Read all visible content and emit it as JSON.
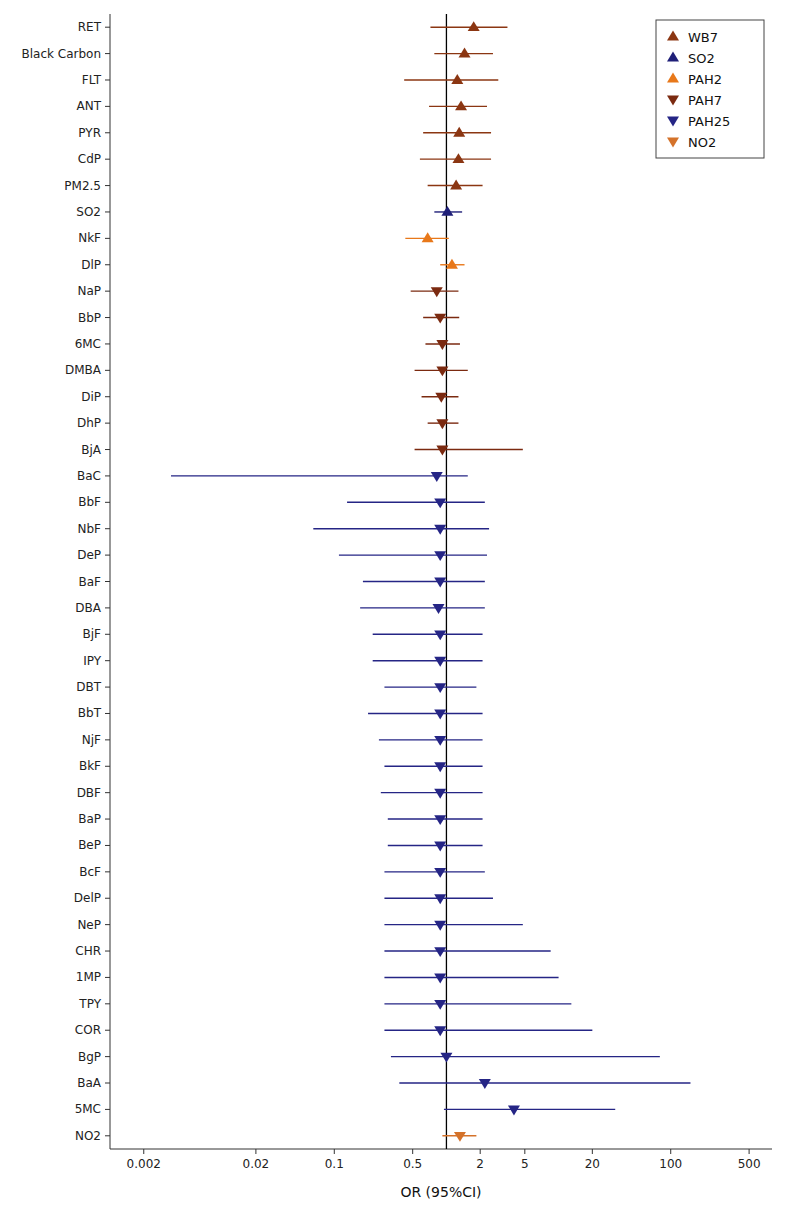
{
  "chart_data": {
    "type": "forest",
    "xlabel": "OR (95%CI)",
    "log": "x",
    "xlim": [
      0.001,
      800
    ],
    "xticks": [
      0.002,
      0.02,
      0.1,
      0.5,
      2,
      5,
      20,
      100,
      500
    ],
    "ref_line": 1.0,
    "grid": false,
    "legend": "upper right",
    "categories": [
      "RET",
      "Black Carbon",
      "FLT",
      "ANT",
      "PYR",
      "CdP",
      "PM2.5",
      "SO2",
      "NkF",
      "DlP",
      "NaP",
      "BbP",
      "6MC",
      "DMBA",
      "DiP",
      "DhP",
      "BjA",
      "BaC",
      "BbF",
      "NbF",
      "DeP",
      "BaF",
      "DBA",
      "BjF",
      "IPY",
      "DBT",
      "BbT",
      "NjF",
      "BkF",
      "DBF",
      "BaP",
      "BeP",
      "BcF",
      "DelP",
      "NeP",
      "CHR",
      "1MP",
      "TPY",
      "COR",
      "BgP",
      "BaA",
      "5MC",
      "NO2"
    ],
    "series": [
      {
        "name": "WB7",
        "color": "#8B3612",
        "marker": "triangle-up",
        "values": [
          1.75,
          1.45,
          1.25,
          1.35,
          1.3,
          1.28,
          1.22,
          null,
          null,
          null,
          null,
          null,
          null,
          null,
          null,
          null,
          null,
          null,
          null,
          null,
          null,
          null,
          null,
          null,
          null,
          null,
          null,
          null,
          null,
          null,
          null,
          null,
          null,
          null,
          null,
          null,
          null,
          null,
          null,
          null,
          null,
          null,
          null
        ],
        "ci_lo": [
          0.72,
          0.78,
          0.42,
          0.7,
          0.62,
          0.58,
          0.68,
          null,
          null,
          null,
          null,
          null,
          null,
          null,
          null,
          null,
          null,
          null,
          null,
          null,
          null,
          null,
          null,
          null,
          null,
          null,
          null,
          null,
          null,
          null,
          null,
          null,
          null,
          null,
          null,
          null,
          null,
          null,
          null,
          null,
          null,
          null,
          null
        ],
        "ci_hi": [
          3.5,
          2.6,
          2.9,
          2.3,
          2.5,
          2.5,
          2.1,
          null,
          null,
          null,
          null,
          null,
          null,
          null,
          null,
          null,
          null,
          null,
          null,
          null,
          null,
          null,
          null,
          null,
          null,
          null,
          null,
          null,
          null,
          null,
          null,
          null,
          null,
          null,
          null,
          null,
          null,
          null,
          null,
          null,
          null,
          null,
          null
        ]
      },
      {
        "name": "SO2",
        "color": "#1F1F78",
        "marker": "triangle-up",
        "values": [
          null,
          null,
          null,
          null,
          null,
          null,
          null,
          1.02,
          null,
          null,
          null,
          null,
          null,
          null,
          null,
          null,
          null,
          null,
          null,
          null,
          null,
          null,
          null,
          null,
          null,
          null,
          null,
          null,
          null,
          null,
          null,
          null,
          null,
          null,
          null,
          null,
          null,
          null,
          null,
          null,
          null,
          null,
          null
        ],
        "ci_lo": [
          null,
          null,
          null,
          null,
          null,
          null,
          null,
          0.78,
          null,
          null,
          null,
          null,
          null,
          null,
          null,
          null,
          null,
          null,
          null,
          null,
          null,
          null,
          null,
          null,
          null,
          null,
          null,
          null,
          null,
          null,
          null,
          null,
          null,
          null,
          null,
          null,
          null,
          null,
          null,
          null,
          null,
          null,
          null
        ],
        "ci_hi": [
          null,
          null,
          null,
          null,
          null,
          null,
          null,
          1.38,
          null,
          null,
          null,
          null,
          null,
          null,
          null,
          null,
          null,
          null,
          null,
          null,
          null,
          null,
          null,
          null,
          null,
          null,
          null,
          null,
          null,
          null,
          null,
          null,
          null,
          null,
          null,
          null,
          null,
          null,
          null,
          null,
          null,
          null,
          null
        ]
      },
      {
        "name": "PAH2",
        "color": "#E8781A",
        "marker": "triangle-up",
        "values": [
          null,
          null,
          null,
          null,
          null,
          null,
          null,
          null,
          0.68,
          1.12,
          null,
          null,
          null,
          null,
          null,
          null,
          null,
          null,
          null,
          null,
          null,
          null,
          null,
          null,
          null,
          null,
          null,
          null,
          null,
          null,
          null,
          null,
          null,
          null,
          null,
          null,
          null,
          null,
          null,
          null,
          null,
          null,
          null
        ],
        "ci_lo": [
          null,
          null,
          null,
          null,
          null,
          null,
          null,
          null,
          0.43,
          0.88,
          null,
          null,
          null,
          null,
          null,
          null,
          null,
          null,
          null,
          null,
          null,
          null,
          null,
          null,
          null,
          null,
          null,
          null,
          null,
          null,
          null,
          null,
          null,
          null,
          null,
          null,
          null,
          null,
          null,
          null,
          null,
          null,
          null
        ],
        "ci_hi": [
          null,
          null,
          null,
          null,
          null,
          null,
          null,
          null,
          1.05,
          1.45,
          null,
          null,
          null,
          null,
          null,
          null,
          null,
          null,
          null,
          null,
          null,
          null,
          null,
          null,
          null,
          null,
          null,
          null,
          null,
          null,
          null,
          null,
          null,
          null,
          null,
          null,
          null,
          null,
          null,
          null,
          null,
          null,
          null
        ]
      },
      {
        "name": "PAH7",
        "color": "#7B2A10",
        "marker": "triangle-down",
        "values": [
          null,
          null,
          null,
          null,
          null,
          null,
          null,
          null,
          null,
          null,
          0.82,
          0.88,
          0.92,
          0.92,
          0.9,
          0.92,
          0.92,
          null,
          null,
          null,
          null,
          null,
          null,
          null,
          null,
          null,
          null,
          null,
          null,
          null,
          null,
          null,
          null,
          null,
          null,
          null,
          null,
          null,
          null,
          null,
          null,
          null,
          null
        ],
        "ci_lo": [
          null,
          null,
          null,
          null,
          null,
          null,
          null,
          null,
          null,
          null,
          0.48,
          0.62,
          0.65,
          0.52,
          0.6,
          0.68,
          0.52,
          null,
          null,
          null,
          null,
          null,
          null,
          null,
          null,
          null,
          null,
          null,
          null,
          null,
          null,
          null,
          null,
          null,
          null,
          null,
          null,
          null,
          null,
          null,
          null,
          null,
          null
        ],
        "ci_hi": [
          null,
          null,
          null,
          null,
          null,
          null,
          null,
          null,
          null,
          null,
          1.28,
          1.3,
          1.32,
          1.55,
          1.28,
          1.28,
          4.8,
          null,
          null,
          null,
          null,
          null,
          null,
          null,
          null,
          null,
          null,
          null,
          null,
          null,
          null,
          null,
          null,
          null,
          null,
          null,
          null,
          null,
          null,
          null,
          null,
          null,
          null
        ]
      },
      {
        "name": "PAH25",
        "color": "#252585",
        "marker": "triangle-down",
        "values": [
          null,
          null,
          null,
          null,
          null,
          null,
          null,
          null,
          null,
          null,
          null,
          null,
          null,
          null,
          null,
          null,
          null,
          0.82,
          0.88,
          0.88,
          0.88,
          0.88,
          0.85,
          0.88,
          0.88,
          0.88,
          0.88,
          0.88,
          0.88,
          0.88,
          0.88,
          0.88,
          0.88,
          0.88,
          0.88,
          0.88,
          0.88,
          0.88,
          0.88,
          1.0,
          2.2,
          4.0,
          null
        ],
        "ci_lo": [
          null,
          null,
          null,
          null,
          null,
          null,
          null,
          null,
          null,
          null,
          null,
          null,
          null,
          null,
          null,
          null,
          null,
          0.0035,
          0.13,
          0.065,
          0.11,
          0.18,
          0.17,
          0.22,
          0.22,
          0.28,
          0.2,
          0.25,
          0.28,
          0.26,
          0.3,
          0.3,
          0.28,
          0.28,
          0.28,
          0.28,
          0.28,
          0.28,
          0.28,
          0.32,
          0.38,
          0.95,
          null
        ],
        "ci_hi": [
          null,
          null,
          null,
          null,
          null,
          null,
          null,
          null,
          null,
          null,
          null,
          null,
          null,
          null,
          null,
          null,
          null,
          1.55,
          2.2,
          2.4,
          2.3,
          2.2,
          2.2,
          2.1,
          2.1,
          1.85,
          2.1,
          2.1,
          2.1,
          2.1,
          2.1,
          2.1,
          2.2,
          2.6,
          4.8,
          8.5,
          10.0,
          13.0,
          20.0,
          80.0,
          150.0,
          32.0,
          null
        ]
      },
      {
        "name": "NO2",
        "color": "#D4722A",
        "marker": "triangle-down",
        "values": [
          null,
          null,
          null,
          null,
          null,
          null,
          null,
          null,
          null,
          null,
          null,
          null,
          null,
          null,
          null,
          null,
          null,
          null,
          null,
          null,
          null,
          null,
          null,
          null,
          null,
          null,
          null,
          null,
          null,
          null,
          null,
          null,
          null,
          null,
          null,
          null,
          null,
          null,
          null,
          null,
          null,
          null,
          1.32
        ],
        "ci_lo": [
          null,
          null,
          null,
          null,
          null,
          null,
          null,
          null,
          null,
          null,
          null,
          null,
          null,
          null,
          null,
          null,
          null,
          null,
          null,
          null,
          null,
          null,
          null,
          null,
          null,
          null,
          null,
          null,
          null,
          null,
          null,
          null,
          null,
          null,
          null,
          null,
          null,
          null,
          null,
          null,
          null,
          null,
          0.92
        ],
        "ci_hi": [
          null,
          null,
          null,
          null,
          null,
          null,
          null,
          null,
          null,
          null,
          null,
          null,
          null,
          null,
          null,
          null,
          null,
          null,
          null,
          null,
          null,
          null,
          null,
          null,
          null,
          null,
          null,
          null,
          null,
          null,
          null,
          null,
          null,
          null,
          null,
          null,
          null,
          null,
          null,
          null,
          null,
          null,
          1.85
        ]
      }
    ]
  }
}
